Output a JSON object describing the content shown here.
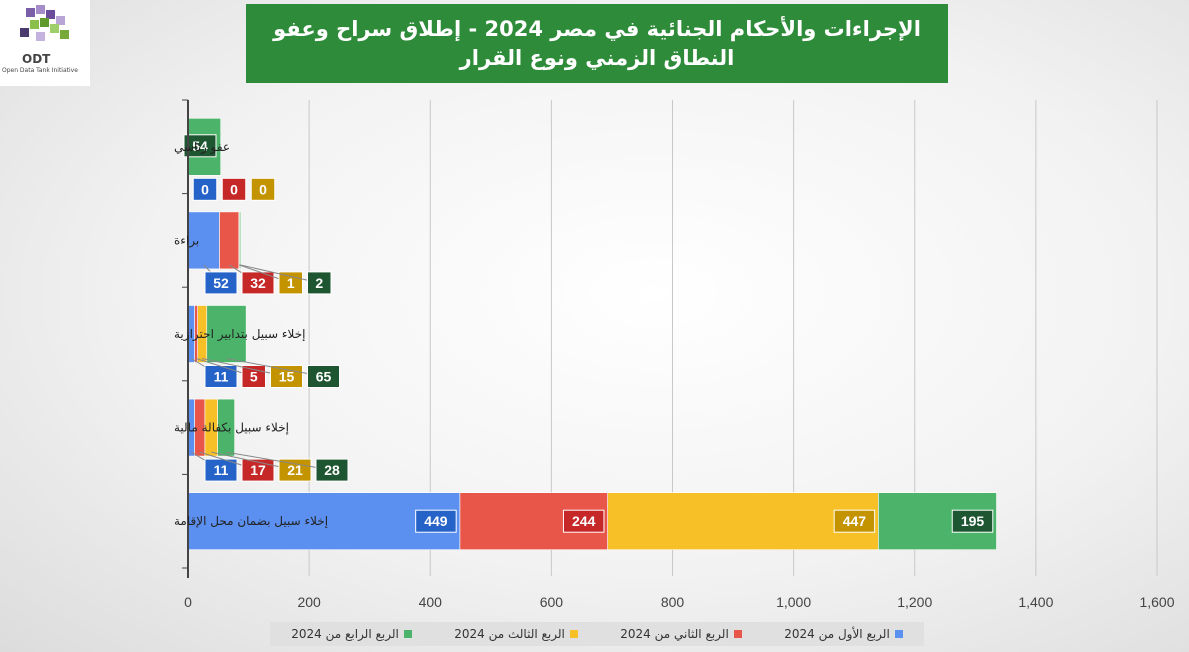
{
  "logo": {
    "text": "ODT",
    "subtitle": "Open Data Tank Initiative"
  },
  "chart_data": {
    "type": "bar",
    "orientation": "horizontal",
    "stacked": true,
    "title_line1": "الإجراءات والأحكام الجنائية في مصر 2024 - إطلاق سراح وعفو",
    "title_line2": "النطاق الزمني ونوع القرار",
    "categories": [
      "إخلاء سبيل بضمان محل الإقامة",
      "إخلاء سبيل بكفالة مالية",
      "إخلاء سبيل بتدابير احترازية",
      "براءة",
      "عفو رئاسي"
    ],
    "series": [
      {
        "name": "الربع الأول من 2024",
        "color": "#5b8ff0",
        "label_color": "#2563c9",
        "values": [
          449,
          11,
          11,
          52,
          0
        ]
      },
      {
        "name": "الربع الثاني من 2024",
        "color": "#e8564a",
        "label_color": "#c62828",
        "values": [
          244,
          17,
          5,
          32,
          0
        ]
      },
      {
        "name": "الربع الثالث من 2024",
        "color": "#f6c026",
        "label_color": "#c49300",
        "values": [
          447,
          21,
          15,
          1,
          0
        ]
      },
      {
        "name": "الربع الرابع من 2024",
        "color": "#4cb36a",
        "label_color": "#1e5631",
        "values": [
          195,
          28,
          65,
          2,
          54
        ]
      }
    ],
    "xlim": [
      0,
      1600
    ],
    "xticks": [
      0,
      200,
      400,
      600,
      800,
      1000,
      1200,
      1400,
      1600
    ],
    "xtick_labels": [
      "0",
      "200",
      "400",
      "600",
      "800",
      "1,000",
      "1,200",
      "1,400",
      "1,600"
    ],
    "grid": true,
    "legend_position": "bottom"
  }
}
